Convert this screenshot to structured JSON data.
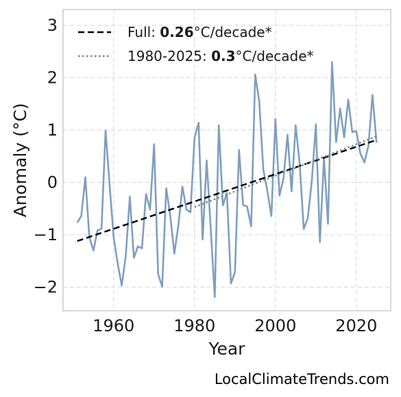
{
  "chart_data": {
    "type": "line",
    "xlabel": "Year",
    "ylabel": "Anomaly (°C)",
    "xlim": [
      1947.5,
      2028.5
    ],
    "ylim": [
      -2.45,
      3.3
    ],
    "xticks": [
      1960,
      1980,
      2000,
      2020
    ],
    "xtick_labels": [
      "1960",
      "1980",
      "2000",
      "2020"
    ],
    "yticks": [
      3,
      2,
      1,
      0,
      -1,
      -2
    ],
    "ytick_labels": [
      "3",
      "2",
      "1",
      "0",
      "−1",
      "−2"
    ],
    "grid": true,
    "legend_position": "top-left",
    "series": [
      {
        "style": "solid",
        "color": "#7f9fbf",
        "x": [
          1951,
          1952,
          1953,
          1954,
          1955,
          1956,
          1957,
          1958,
          1959,
          1960,
          1961,
          1962,
          1963,
          1964,
          1965,
          1966,
          1967,
          1968,
          1969,
          1970,
          1971,
          1972,
          1973,
          1974,
          1975,
          1976,
          1977,
          1978,
          1979,
          1980,
          1981,
          1982,
          1983,
          1984,
          1985,
          1986,
          1987,
          1988,
          1989,
          1990,
          1991,
          1992,
          1993,
          1994,
          1995,
          1996,
          1997,
          1998,
          1999,
          2000,
          2001,
          2002,
          2003,
          2004,
          2005,
          2006,
          2007,
          2008,
          2009,
          2010,
          2011,
          2012,
          2013,
          2014,
          2015,
          2016,
          2017,
          2018,
          2019,
          2020,
          2021,
          2022,
          2023,
          2024,
          2025
        ],
        "y": [
          -0.77,
          -0.64,
          0.1,
          -1.05,
          -1.3,
          -0.92,
          -0.88,
          0.99,
          -0.05,
          -1.05,
          -1.55,
          -1.97,
          -1.4,
          -0.27,
          -1.44,
          -1.22,
          -1.26,
          -0.22,
          -0.52,
          0.73,
          -1.75,
          -1.99,
          -0.11,
          -0.64,
          -1.36,
          -0.82,
          -0.08,
          -0.52,
          -0.57,
          0.85,
          1.14,
          -1.09,
          0.42,
          -0.88,
          -2.19,
          1.09,
          -0.44,
          -0.2,
          -1.93,
          -1.71,
          0.62,
          -0.43,
          -0.46,
          -0.84,
          2.06,
          1.55,
          0.25,
          -0.16,
          -0.64,
          1.21,
          -0.25,
          0.08,
          0.91,
          -0.17,
          1.09,
          0.35,
          -0.89,
          -0.68,
          0.03,
          1.11,
          -1.14,
          0.46,
          -0.79,
          2.3,
          0.77,
          1.41,
          0.86,
          1.58,
          0.96,
          0.98,
          0.55,
          0.38,
          0.7,
          1.67,
          0.76
        ]
      },
      {
        "name": "Full",
        "style": "dashed",
        "color": "#000000",
        "x": [
          1951,
          2025
        ],
        "y": [
          -1.12,
          0.81
        ]
      },
      {
        "name": "1980-2025",
        "style": "dotted",
        "color": "#808080",
        "x": [
          1980,
          2025
        ],
        "y": [
          -0.47,
          0.88
        ]
      }
    ],
    "legend": [
      {
        "prefix": "Full: ",
        "value": "0.26",
        "suffix": "°C/decade*",
        "style": "dashed",
        "color": "#000000"
      },
      {
        "prefix": "1980-2025: ",
        "value": "0.3",
        "suffix": "°C/decade*",
        "style": "dotted",
        "color": "#808080"
      }
    ]
  },
  "watermark": "LocalClimateTrends.com"
}
